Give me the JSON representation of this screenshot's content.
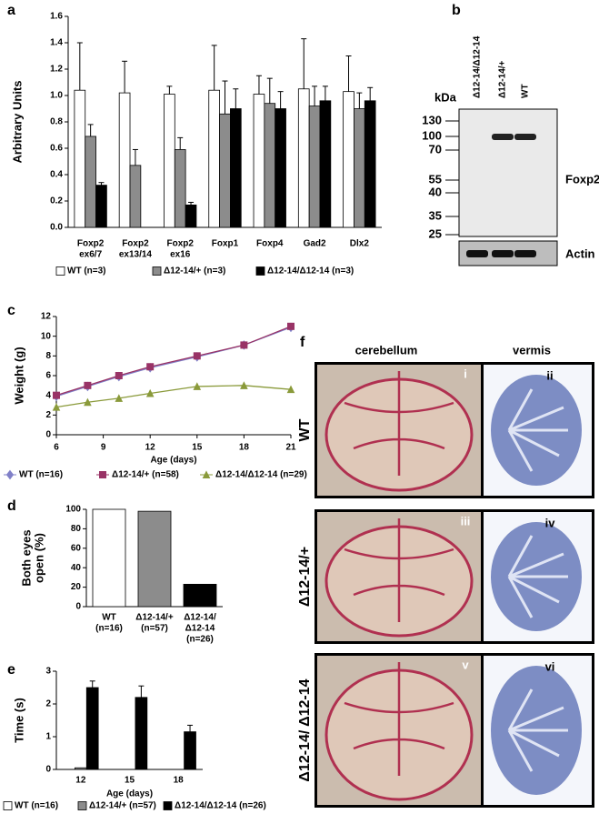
{
  "panel_labels": [
    "a",
    "b",
    "c",
    "d",
    "e",
    "f"
  ],
  "chart_data": [
    {
      "type": "bar",
      "ylabel": "Arbitrary Units",
      "categories": [
        [
          "Foxp2",
          "ex6/7"
        ],
        [
          "Foxp2",
          "ex13/14"
        ],
        [
          "Foxp2",
          "ex16"
        ],
        [
          "Foxp1"
        ],
        [
          "Foxp4"
        ],
        [
          "Gad2"
        ],
        [
          "Dlx2"
        ]
      ],
      "series": [
        {
          "name": "WT (n=3)",
          "color": "#ffffff",
          "values": [
            1.04,
            1.02,
            1.01,
            1.04,
            1.01,
            1.05,
            1.03
          ],
          "errors": [
            0.36,
            0.24,
            0.06,
            0.34,
            0.14,
            0.38,
            0.27
          ]
        },
        {
          "name": "Δ12-14/+ (n=3)",
          "color": "#8c8c8c",
          "values": [
            0.69,
            0.47,
            0.59,
            0.86,
            0.94,
            0.92,
            0.9
          ],
          "errors": [
            0.09,
            0.12,
            0.09,
            0.25,
            0.19,
            0.15,
            0.12
          ]
        },
        {
          "name": "Δ12-14/Δ12-14 (n=3)",
          "color": "#000000",
          "values": [
            0.32,
            0,
            0.17,
            0.9,
            0.9,
            0.96,
            0.96
          ],
          "errors": [
            0.02,
            0,
            0.02,
            0.15,
            0.13,
            0.11,
            0.1
          ]
        }
      ],
      "ylim": [
        0,
        1.6
      ],
      "yticks": [
        {
          "value": 0,
          "label": "0.0"
        },
        0.2,
        0.4,
        0.6,
        0.8,
        {
          "value": 1,
          "label": "1.0"
        },
        1.2,
        1.4,
        1.6
      ]
    },
    {
      "type": "line",
      "ylabel": "Weight (g)",
      "xlabel": "Age (days)",
      "x": [
        6,
        8,
        10,
        12,
        15,
        18,
        21
      ],
      "series": [
        {
          "name": "WT (n=16)",
          "color": "#8080c8",
          "marker": "diamond",
          "values": [
            3.9,
            4.9,
            5.9,
            6.8,
            7.9,
            9.1,
            10.9
          ]
        },
        {
          "name": "Δ12-14/+ (n=58)",
          "color": "#993366",
          "marker": "square",
          "values": [
            4.0,
            5.0,
            6.0,
            6.9,
            8.0,
            9.1,
            11.0
          ]
        },
        {
          "name": "Δ12-14/Δ12-14 (n=29)",
          "color": "#8a9a3a",
          "marker": "triangle",
          "values": [
            2.8,
            3.3,
            3.7,
            4.2,
            4.9,
            5.0,
            4.6
          ]
        }
      ],
      "xlim": [
        6,
        21
      ],
      "xticks": [
        6,
        9,
        12,
        15,
        18,
        21
      ],
      "ylim": [
        0,
        12
      ],
      "yticks": [
        0,
        2,
        4,
        6,
        8,
        10,
        12
      ]
    },
    {
      "type": "bar",
      "ylabel": [
        "Both eyes",
        "open (%)"
      ],
      "categories": [
        [
          "WT",
          "(n=16)"
        ],
        [
          "Δ12-14/+",
          "(n=57)"
        ],
        [
          "Δ12-14/",
          "Δ12-14",
          "(n=26)"
        ]
      ],
      "values": [
        100,
        98,
        23
      ],
      "colors": [
        "#ffffff",
        "#8c8c8c",
        "#000000"
      ],
      "ylim": [
        0,
        100
      ],
      "yticks": [
        0,
        20,
        40,
        60,
        80,
        100
      ]
    },
    {
      "type": "bar",
      "ylabel": "Time (s)",
      "xlabel": "Age (days)",
      "categories": [
        "12",
        "15",
        "18"
      ],
      "series": [
        {
          "name": "WT (n=16)",
          "color": "#ffffff",
          "values": [
            0,
            0,
            0
          ]
        },
        {
          "name": "Δ12-14/+ (n=57)",
          "color": "#8c8c8c",
          "values": [
            0.05,
            0,
            0
          ]
        },
        {
          "name": "Δ12-14/Δ12-14 (n=26)",
          "color": "#000000",
          "values": [
            2.5,
            2.2,
            1.15
          ],
          "errors": [
            0.2,
            0.35,
            0.2
          ]
        }
      ],
      "ylim": [
        0,
        3
      ],
      "yticks": [
        0,
        1,
        2,
        3
      ]
    }
  ],
  "blot": {
    "lanes": [
      "Δ12-14/Δ12-14",
      "Δ12-14/+",
      "WT"
    ],
    "unit": "kDa",
    "markers": [
      130,
      100,
      70,
      55,
      40,
      35,
      25
    ],
    "bands": [
      "Foxp2",
      "Actin"
    ]
  },
  "brain": {
    "columns": [
      "cerebellum",
      "vermis"
    ],
    "rows": [
      "WT",
      "Δ12-14/+",
      "Δ12-14/ Δ12-14"
    ],
    "panels": [
      "i",
      "ii",
      "iii",
      "iv",
      "v",
      "vi"
    ]
  }
}
